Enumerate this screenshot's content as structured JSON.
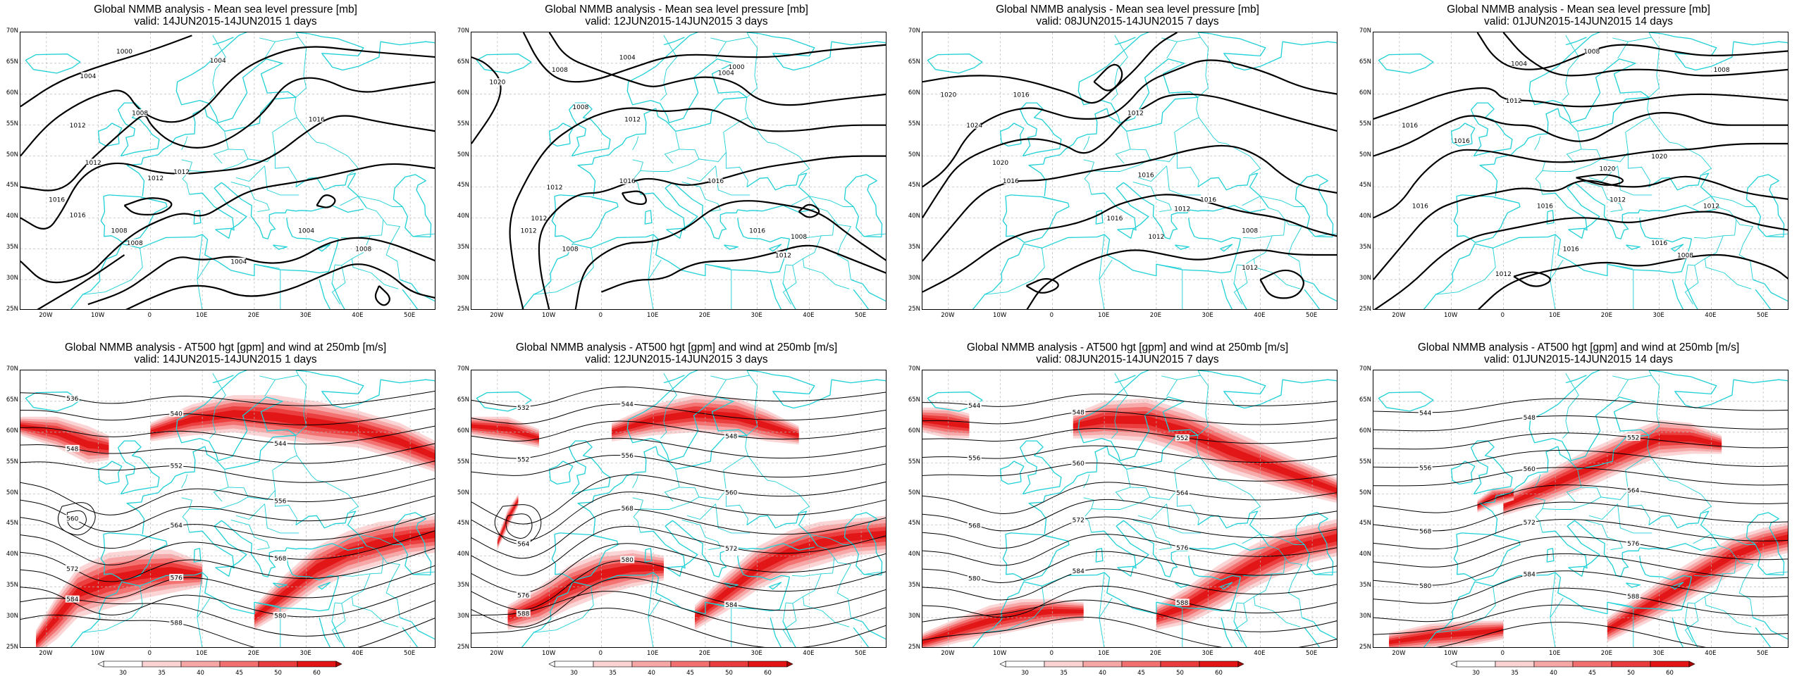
{
  "image": {
    "x_tick_labels": [
      "20W",
      "10W",
      "0",
      "10E",
      "20E",
      "30E",
      "40E",
      "50E"
    ],
    "y_tick_labels": [
      "70N",
      "65N",
      "60N",
      "55N",
      "50N",
      "45N",
      "40N",
      "35N",
      "30N",
      "25N"
    ],
    "colorbar_labels": [
      "30",
      "35",
      "40",
      "45",
      "50",
      "60"
    ],
    "colors": {
      "coastline": "#1fd0d6",
      "contour": "#000000",
      "jet_levels": [
        "#fbd3d3",
        "#f7a6a6",
        "#f27070",
        "#ea3c3c",
        "#e21414",
        "#b10000"
      ]
    },
    "panels": [
      {
        "row": "mslp",
        "title_line1": "Global NMMB analysis - Mean sea level pressure [mb]",
        "title_line2": "valid: 14JUN2015-14JUN2015   1 days",
        "contour_labels": [
          "1000",
          "1004",
          "1004",
          "1008",
          "1012",
          "1012",
          "1012",
          "1016",
          "1016",
          "1008",
          "1008",
          "1012",
          "1004",
          "1016",
          "1008",
          "1004"
        ]
      },
      {
        "row": "mslp",
        "title_line1": "Global NMMB analysis - Mean sea level pressure [mb]",
        "title_line2": "valid: 12JUN2015-14JUN2015   3 days",
        "contour_labels": [
          "1020",
          "1004",
          "1008",
          "1004",
          "1000",
          "1008",
          "1012",
          "1012",
          "1016",
          "1016",
          "1012",
          "1012",
          "1008",
          "1016",
          "1008",
          "1012"
        ]
      },
      {
        "row": "mslp",
        "title_line1": "Global NMMB analysis - Mean sea level pressure [mb]",
        "title_line2": "valid: 08JUN2015-14JUN2015   7 days",
        "contour_labels": [
          "1020",
          "1024",
          "1016",
          "1012",
          "1020",
          "1016",
          "1016",
          "1012",
          "1016",
          "1012",
          "1008",
          "1012",
          "1016"
        ]
      },
      {
        "row": "mslp",
        "title_line1": "Global NMMB analysis - Mean sea level pressure [mb]",
        "title_line2": "valid: 01JUN2015-14JUN2015   14 days",
        "contour_labels": [
          "1008",
          "1004",
          "1008",
          "1012",
          "1016",
          "1016",
          "1020",
          "1020",
          "1016",
          "1016",
          "1012",
          "1016",
          "1012",
          "1016",
          "1008",
          "1012"
        ]
      },
      {
        "row": "z500",
        "title_line1": "Global NMMB analysis - AT500 hgt [gpm] and wind at 250mb [m/s]",
        "title_line2": "valid: 14JUN2015-14JUN2015   1 days",
        "contour_labels": [
          "536",
          "540",
          "544",
          "548",
          "552",
          "556",
          "560",
          "564",
          "568",
          "572",
          "576",
          "580",
          "584",
          "588"
        ]
      },
      {
        "row": "z500",
        "title_line1": "Global NMMB analysis - AT500 hgt [gpm] and wind at 250mb [m/s]",
        "title_line2": "valid: 12JUN2015-14JUN2015   3 days",
        "contour_labels": [
          "532",
          "544",
          "548",
          "552",
          "556",
          "560",
          "564",
          "568",
          "572",
          "576",
          "580",
          "584",
          "588"
        ]
      },
      {
        "row": "z500",
        "title_line1": "Global NMMB analysis - AT500 hgt [gpm] and wind at 250mb [m/s]",
        "title_line2": "valid: 08JUN2015-14JUN2015   7 days",
        "contour_labels": [
          "544",
          "548",
          "552",
          "556",
          "560",
          "564",
          "568",
          "572",
          "576",
          "580",
          "584",
          "588"
        ]
      },
      {
        "row": "z500",
        "title_line1": "Global NMMB analysis - AT500 hgt [gpm] and wind at 250mb [m/s]",
        "title_line2": "valid: 01JUN2015-14JUN2015   14 days",
        "contour_labels": [
          "544",
          "548",
          "552",
          "556",
          "560",
          "564",
          "568",
          "572",
          "576",
          "580",
          "584",
          "588"
        ]
      }
    ]
  }
}
